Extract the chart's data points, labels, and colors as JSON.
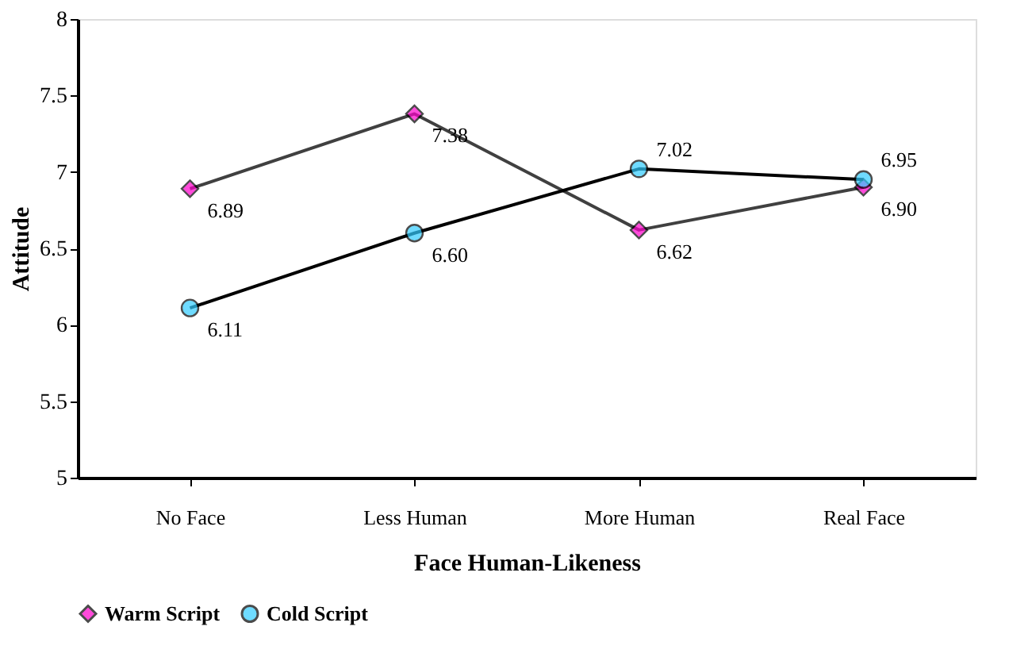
{
  "chart_data": {
    "type": "line",
    "xlabel": "Face Human-Likeness",
    "ylabel": "Attitude",
    "categories": [
      "No Face",
      "Less Human",
      "More Human",
      "Real Face"
    ],
    "series": [
      {
        "name": "Warm Script",
        "color": "#ff00cc",
        "marker": "diamond",
        "values": [
          6.89,
          7.38,
          6.62,
          6.9
        ],
        "value_labels": [
          "6.89",
          "7.38",
          "6.62",
          "6.90"
        ]
      },
      {
        "name": "Cold Script",
        "color": "#33ccff",
        "marker": "circle",
        "values": [
          6.11,
          6.6,
          7.02,
          6.95
        ],
        "value_labels": [
          "6.11",
          "6.60",
          "7.02",
          "6.95"
        ]
      }
    ],
    "ylim": [
      5,
      8
    ],
    "yticks": [
      5,
      5.5,
      6,
      6.5,
      7,
      7.5,
      8
    ],
    "grid": false,
    "legend": "bottom",
    "line_style": "solid"
  }
}
